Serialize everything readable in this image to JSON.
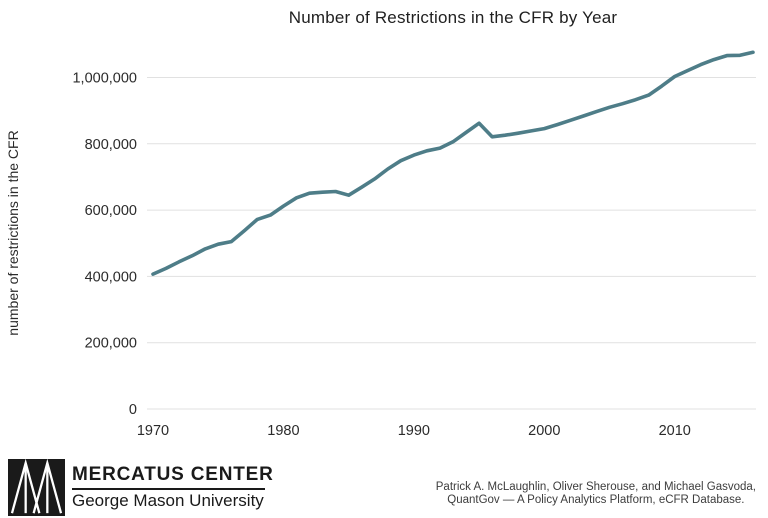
{
  "title": "Number of Restrictions in the CFR by Year",
  "chart_data": {
    "type": "line",
    "title": "Number of Restrictions in the CFR by Year",
    "xlabel": "",
    "ylabel": "number of restrictions in the CFR",
    "x": [
      1970,
      1971,
      1972,
      1973,
      1974,
      1975,
      1976,
      1977,
      1978,
      1979,
      1980,
      1981,
      1982,
      1983,
      1984,
      1985,
      1986,
      1987,
      1988,
      1989,
      1990,
      1991,
      1992,
      1993,
      1994,
      1995,
      1996,
      1997,
      1998,
      1999,
      2000,
      2001,
      2002,
      2003,
      2004,
      2005,
      2006,
      2007,
      2008,
      2009,
      2010,
      2011,
      2012,
      2013,
      2014,
      2015,
      2016
    ],
    "series": [
      {
        "name": "restrictions",
        "values": [
          407000,
          424000,
          444000,
          462000,
          483000,
          497000,
          505000,
          538000,
          572000,
          585000,
          612000,
          637000,
          651000,
          654000,
          656000,
          645000,
          669000,
          694000,
          724000,
          749000,
          766000,
          779000,
          787000,
          806000,
          834000,
          862000,
          821000,
          826000,
          832000,
          839000,
          846000,
          858000,
          871000,
          884000,
          897000,
          910000,
          921000,
          933000,
          947000,
          974000,
          1003000,
          1021000,
          1039000,
          1054000,
          1066000,
          1067000,
          1076000
        ]
      }
    ],
    "xlim": [
      1970,
      2016
    ],
    "ylim": [
      0,
      1100000
    ],
    "yticks": [
      0,
      200000,
      400000,
      600000,
      800000,
      1000000
    ],
    "ytick_labels": [
      "0",
      "200,000",
      "400,000",
      "600,000",
      "800,000",
      "1,000,000"
    ],
    "xticks": [
      1970,
      1980,
      1990,
      2000,
      2010
    ],
    "xtick_labels": [
      "1970",
      "1980",
      "1990",
      "2000",
      "2010"
    ],
    "grid": "horizontal",
    "legend": "none",
    "line_color": "#4e7d88",
    "gridline_color": "#e1e1e1",
    "tick_text_color": "#2b2b2b"
  },
  "footer": {
    "logo": {
      "mark_icon": "mercatus-triangles-mark",
      "org": "MERCATUS CENTER",
      "university": "George Mason University"
    },
    "attribution_line1": "Patrick A. McLaughlin, Oliver Sherouse, and Michael Gasvoda,",
    "attribution_line2": "QuantGov — A Policy Analytics Platform, eCFR Database."
  },
  "colors": {
    "background": "#ffffff",
    "title_text": "#1f1f1f",
    "logo_black": "#1a1a1a",
    "attribution_text": "#3d3d3d"
  }
}
